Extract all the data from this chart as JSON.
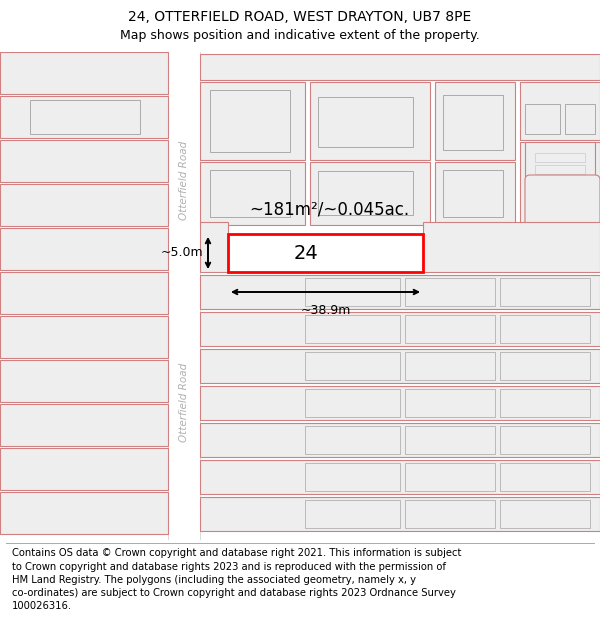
{
  "title": "24, OTTERFIELD ROAD, WEST DRAYTON, UB7 8PE",
  "subtitle": "Map shows position and indicative extent of the property.",
  "footer": "Contains OS data © Crown copyright and database right 2021. This information is subject\nto Crown copyright and database rights 2023 and is reproduced with the permission of\nHM Land Registry. The polygons (including the associated geometry, namely x, y\nco-ordinates) are subject to Crown copyright and database rights 2023 Ordnance Survey\n100026316.",
  "area_text": "~181m²/~0.045ac.",
  "width_text": "~38.9m",
  "depth_text": "~5.0m",
  "number_text": "24",
  "map_bg": "#ffffff",
  "block_fill": "#eeeeee",
  "block_stroke": "#d08080",
  "highlight_fill": "#ffffff",
  "highlight_stroke": "#ff0000",
  "road_label": "Otterfield Road",
  "title_fontsize": 10,
  "subtitle_fontsize": 9,
  "footer_fontsize": 7.2,
  "annot_fontsize": 9,
  "area_fontsize": 12,
  "num_fontsize": 14
}
